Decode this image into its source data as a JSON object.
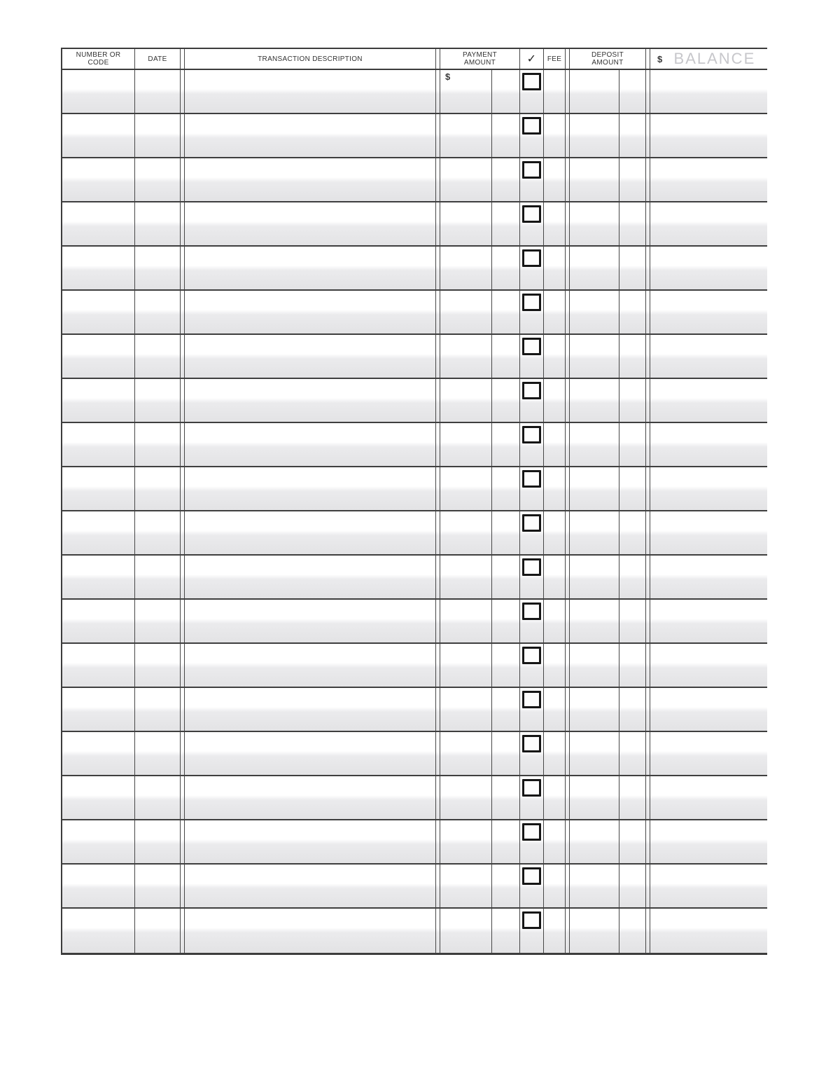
{
  "form": {
    "kind": "check-register-blank-form"
  },
  "colors": {
    "grid_line": "#3f3f3f",
    "shaded_band": "#e3e3e5",
    "balance_watermark": "#c7c7cb",
    "header_text": "#333333"
  },
  "header": {
    "number_code": {
      "line1": "NUMBER OR",
      "line2": "CODE"
    },
    "date": "DATE",
    "description": "TRANSACTION DESCRIPTION",
    "payment": {
      "line1": "PAYMENT",
      "line2": "AMOUNT"
    },
    "check_mark": "✓",
    "fee": "FEE",
    "deposit": {
      "line1": "DEPOSIT",
      "line2": "AMOUNT"
    },
    "balance": {
      "currency": "$",
      "label": "BALANCE"
    }
  },
  "table": {
    "row_count": 20,
    "rows": [
      {
        "payment_prefix": "$",
        "number": "",
        "date": "",
        "description": "",
        "payment_dollars": "",
        "payment_cents": "",
        "checked": false,
        "fee": "",
        "deposit_dollars": "",
        "deposit_cents": "",
        "balance": ""
      },
      {
        "payment_prefix": "",
        "checked": false
      },
      {
        "payment_prefix": "",
        "checked": false
      },
      {
        "payment_prefix": "",
        "checked": false
      },
      {
        "payment_prefix": "",
        "checked": false
      },
      {
        "payment_prefix": "",
        "checked": false
      },
      {
        "payment_prefix": "",
        "checked": false
      },
      {
        "payment_prefix": "",
        "checked": false
      },
      {
        "payment_prefix": "",
        "checked": false
      },
      {
        "payment_prefix": "",
        "checked": false
      },
      {
        "payment_prefix": "",
        "checked": false
      },
      {
        "payment_prefix": "",
        "checked": false
      },
      {
        "payment_prefix": "",
        "checked": false
      },
      {
        "payment_prefix": "",
        "checked": false
      },
      {
        "payment_prefix": "",
        "checked": false
      },
      {
        "payment_prefix": "",
        "checked": false
      },
      {
        "payment_prefix": "",
        "checked": false
      },
      {
        "payment_prefix": "",
        "checked": false
      },
      {
        "payment_prefix": "",
        "checked": false
      },
      {
        "payment_prefix": "",
        "checked": false
      }
    ]
  }
}
